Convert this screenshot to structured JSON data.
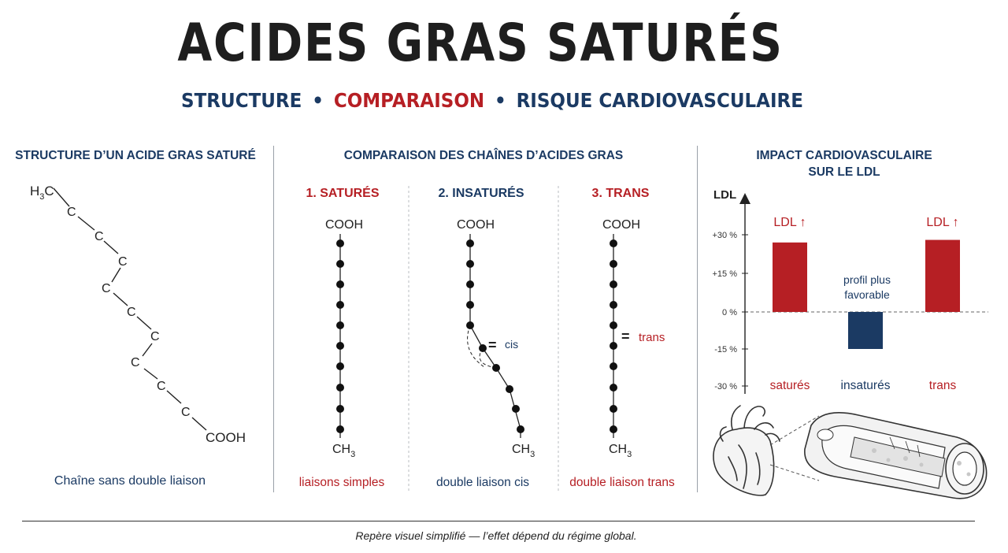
{
  "title": "ACIDES GRAS SATURÉS",
  "subtitle": {
    "part1": "STRUCTURE",
    "sep": "•",
    "part2": "COMPARAISON",
    "part3": "RISQUE CARDIOVASCULAIRE"
  },
  "structure": {
    "heading": "STRUCTURE D’UN ACIDE GRAS SATURÉ",
    "start_group": "H",
    "start_sub": "3",
    "start_tail": "C",
    "carbon": "C",
    "end_group": "COOH",
    "caption": "Chaîne sans double liaison"
  },
  "comparison": {
    "heading": "COMPARAISON DES CHAÎNES D’ACIDES GRAS",
    "top_group": "COOH",
    "bottom_group": "CH",
    "bottom_sub": "3",
    "bond_symbol": "=",
    "columns": [
      {
        "label": "1. SATURÉS",
        "caption": "liaisons simples",
        "bond_label": ""
      },
      {
        "label": "2. INSATURÉS",
        "caption": "double liaison cis",
        "bond_label": "cis"
      },
      {
        "label": "3. TRANS",
        "caption": "double liaison trans",
        "bond_label": "trans"
      }
    ]
  },
  "impact": {
    "heading_line1": "IMPACT CARDIOVASCULAIRE",
    "heading_line2": "SUR LE LDL",
    "axis_label": "LDL",
    "annotation_line1": "profil plus",
    "annotation_line2": "favorable",
    "bar_label_up": "LDL ↑",
    "colors": {
      "red": "#b61f24",
      "navy": "#1b3a63"
    }
  },
  "chart_data": {
    "type": "bar",
    "ylabel": "LDL",
    "ylim": [
      -30,
      30
    ],
    "yticks": [
      "+30 %",
      "+15 %",
      "0 %",
      "-15 %",
      "-30 %"
    ],
    "ytick_values": [
      30,
      15,
      0,
      -15,
      -30
    ],
    "categories": [
      "saturés",
      "insaturés",
      "trans"
    ],
    "values": [
      27,
      -15,
      28
    ],
    "colors": [
      "#b61f24",
      "#1b3a63",
      "#b61f24"
    ]
  },
  "footer": "Repère visuel simplifié — l’effet dépend du régime global."
}
